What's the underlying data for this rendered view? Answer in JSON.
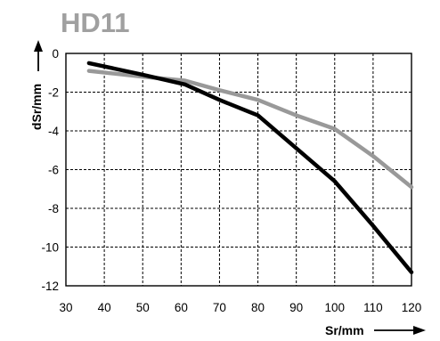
{
  "chart_data": {
    "type": "line",
    "title": "HD11",
    "xlabel": "Sr/mm",
    "ylabel": "dSr/mm",
    "xlim": [
      30,
      120
    ],
    "ylim": [
      -12,
      0
    ],
    "x_ticks": [
      "30",
      "40",
      "50",
      "60",
      "70",
      "80",
      "90",
      "100",
      "110",
      "120"
    ],
    "y_ticks": [
      "0",
      "-2",
      "-4",
      "-6",
      "-8",
      "-10",
      "-12"
    ],
    "grid": true,
    "series": [
      {
        "color": "#000000",
        "x": [
          36,
          50,
          61,
          70,
          80,
          90,
          100,
          110,
          120
        ],
        "y": [
          -0.5,
          -1.1,
          -1.6,
          -2.4,
          -3.2,
          -4.9,
          -6.6,
          -8.9,
          -11.3
        ]
      },
      {
        "color": "#999999",
        "x": [
          36,
          50,
          61,
          70,
          80,
          90,
          100,
          110,
          120
        ],
        "y": [
          -0.9,
          -1.2,
          -1.4,
          -1.9,
          -2.4,
          -3.2,
          -3.9,
          -5.3,
          -6.9
        ]
      }
    ]
  }
}
